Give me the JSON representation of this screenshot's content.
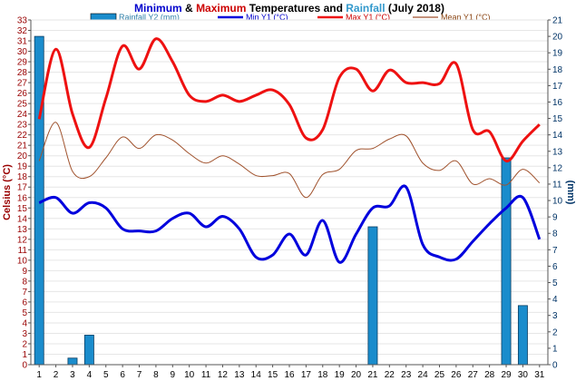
{
  "chart_data": {
    "type": "combo",
    "title_parts": [
      {
        "text": "Minimum",
        "color": "#0000cc"
      },
      {
        "text": " & ",
        "color": "#000000"
      },
      {
        "text": "Maximum",
        "color": "#cc0000"
      },
      {
        "text": " Temperatures and ",
        "color": "#000000"
      },
      {
        "text": "Rainfall",
        "color": "#3399cc"
      },
      {
        "text": " (July 2018)",
        "color": "#000000"
      }
    ],
    "x": [
      1,
      2,
      3,
      4,
      5,
      6,
      7,
      8,
      9,
      10,
      11,
      12,
      13,
      14,
      15,
      16,
      17,
      18,
      19,
      20,
      21,
      22,
      23,
      24,
      25,
      26,
      27,
      28,
      29,
      30,
      31
    ],
    "y1_label": "Celsius (°C)",
    "y2_label": "(mm)",
    "y1_range": [
      0,
      33
    ],
    "y2_range": [
      0,
      21
    ],
    "legend": [
      "Rainfall Y2 (mm)",
      "Min Y1 (°C)",
      "Max Y1 (°C)",
      "Mean Y1 (°C)"
    ],
    "series": [
      {
        "name": "Rainfall Y2 (mm)",
        "kind": "bar",
        "axis": "y2",
        "color": "#1a8ccc",
        "values": [
          20,
          0,
          0.4,
          1.8,
          0,
          0,
          0,
          0,
          0,
          0,
          0,
          0,
          0,
          0,
          0,
          0,
          0,
          0,
          0,
          0,
          8.4,
          0,
          0,
          0,
          0,
          0,
          0,
          0,
          12.6,
          3.6,
          0
        ]
      },
      {
        "name": "Min Y1 (°C)",
        "kind": "line",
        "axis": "y1",
        "color": "#0000dd",
        "values": [
          15.5,
          16,
          14.5,
          15.5,
          15,
          13,
          12.8,
          12.8,
          14,
          14.5,
          13.2,
          14.2,
          13,
          10.3,
          10.5,
          12.5,
          10.5,
          13.8,
          9.8,
          12.5,
          15,
          15.2,
          17,
          11.5,
          10.3,
          10.1,
          11.8,
          13.5,
          15,
          16,
          12
        ]
      },
      {
        "name": "Max Y1 (°C)",
        "kind": "line",
        "axis": "y1",
        "color": "#ee1111",
        "values": [
          23.5,
          30.2,
          24,
          20.8,
          25.5,
          30.5,
          28.3,
          31.2,
          29,
          25.8,
          25.2,
          25.8,
          25.2,
          25.8,
          26.3,
          24.9,
          21.7,
          22.5,
          27.5,
          28.3,
          26.2,
          28.2,
          27,
          27,
          26.9,
          28.8,
          22.5,
          22.3,
          19.5,
          21.4,
          23
        ]
      },
      {
        "name": "Mean Y1 (°C)",
        "kind": "line",
        "axis": "y1",
        "color": "#a0522d",
        "values": [
          19.5,
          23.2,
          18.5,
          18,
          19.8,
          21.8,
          20.7,
          22,
          21.5,
          20.2,
          19.3,
          20,
          19.2,
          18.1,
          18.1,
          18.3,
          16,
          18.2,
          18.7,
          20.5,
          20.7,
          21.6,
          21.9,
          19.3,
          18.6,
          19.5,
          17.3,
          17.8,
          17.2,
          18.7,
          17.4
        ]
      }
    ]
  }
}
